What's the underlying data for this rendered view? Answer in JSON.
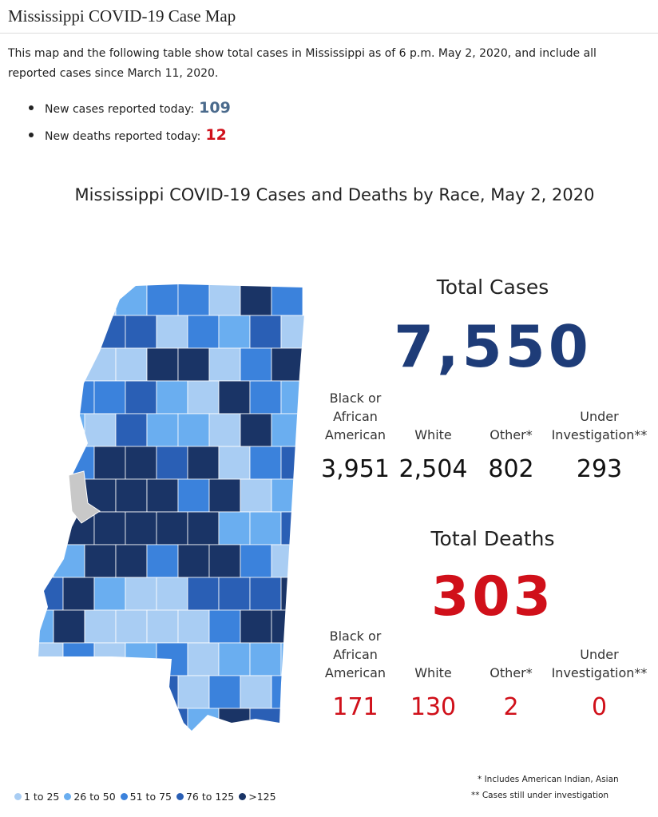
{
  "header": {
    "title": "Mississippi COVID-19 Case Map",
    "intro": "This map and the following table show total cases in Mississippi as of 6 p.m. May 2, 2020, and include all reported cases since March 11, 2020."
  },
  "bullets": [
    {
      "label": "New cases reported today:",
      "value": "109"
    },
    {
      "label": "New deaths reported today:",
      "value": "12"
    }
  ],
  "infographic": {
    "title": "Mississippi COVID-19 Cases and Deaths by Race, May 2, 2020",
    "cases": {
      "title": "Total Cases",
      "total": "7,550",
      "breakdown": [
        {
          "label": "Black or African American",
          "value": "3,951"
        },
        {
          "label": "White",
          "value": "2,504"
        },
        {
          "label": "Other*",
          "value": "802"
        },
        {
          "label": "Under Investigation**",
          "value": "293"
        }
      ]
    },
    "deaths": {
      "title": "Total Deaths",
      "total": "303",
      "breakdown": [
        {
          "label": "Black or African American",
          "value": "171"
        },
        {
          "label": "White",
          "value": "130"
        },
        {
          "label": "Other*",
          "value": "2"
        },
        {
          "label": "Under Investigation**",
          "value": "0"
        }
      ]
    },
    "legend": [
      "1 to 25",
      "26 to 50",
      "51 to 75",
      "76 to 125",
      ">125"
    ],
    "footnotes": [
      "* Includes American Indian, Asian",
      "** Cases still under investigation"
    ]
  }
}
